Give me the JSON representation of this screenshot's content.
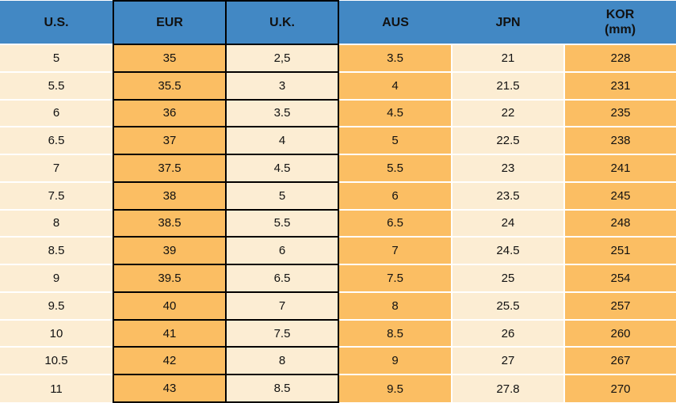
{
  "chart_data": {
    "type": "table",
    "columns": [
      "U.S.",
      "EUR",
      "U.K.",
      "AUS",
      "JPN",
      "KOR (mm)"
    ],
    "header": {
      "us": "U.S.",
      "eur": "EUR",
      "uk": "U.K.",
      "aus": "AUS",
      "jpn": "JPN",
      "kor_line1": "KOR",
      "kor_line2": "(mm)"
    },
    "rows": [
      [
        "5",
        "35",
        "2,5",
        "3.5",
        "21",
        "228"
      ],
      [
        "5.5",
        "35.5",
        "3",
        "4",
        "21.5",
        "231"
      ],
      [
        "6",
        "36",
        "3.5",
        "4.5",
        "22",
        "235"
      ],
      [
        "6.5",
        "37",
        "4",
        "5",
        "22.5",
        "238"
      ],
      [
        "7",
        "37.5",
        "4.5",
        "5.5",
        "23",
        "241"
      ],
      [
        "7.5",
        "38",
        "5",
        "6",
        "23.5",
        "245"
      ],
      [
        "8",
        "38.5",
        "5.5",
        "6.5",
        "24",
        "248"
      ],
      [
        "8.5",
        "39",
        "6",
        "7",
        "24.5",
        "251"
      ],
      [
        "9",
        "39.5",
        "6.5",
        "7.5",
        "25",
        "254"
      ],
      [
        "9.5",
        "40",
        "7",
        "8",
        "25.5",
        "257"
      ],
      [
        "10",
        "41",
        "7.5",
        "8.5",
        "26",
        "260"
      ],
      [
        "10.5",
        "42",
        "8",
        "9",
        "27",
        "267"
      ],
      [
        "11",
        "43",
        "8.5",
        "9.5",
        "27.8",
        "270"
      ]
    ]
  },
  "colors": {
    "header_bg": "#4288C4",
    "orange": "#FBBE63",
    "cream": "#FCEDD3",
    "grid_black": "#000000",
    "separator_white": "#FFFFFF",
    "text": "#111111"
  }
}
